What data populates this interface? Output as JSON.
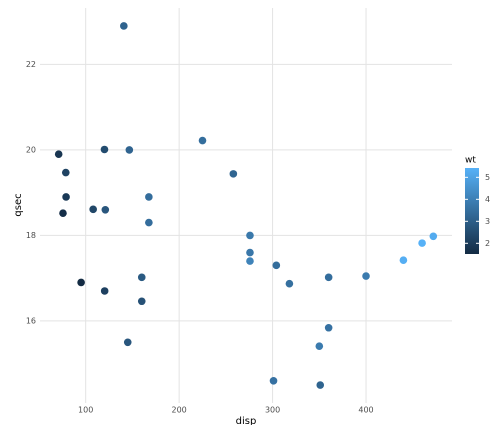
{
  "chart_data": {
    "type": "scatter",
    "x_label": "disp",
    "y_label": "qsec",
    "x": [
      160,
      160,
      108,
      258,
      360,
      225,
      360,
      146.7,
      140.8,
      167.6,
      167.6,
      275.8,
      275.8,
      275.8,
      472,
      460,
      440,
      78.7,
      75.7,
      71.1,
      120.1,
      318,
      304,
      350,
      400,
      79,
      120.3,
      95.1,
      351,
      145,
      301,
      121
    ],
    "y": [
      16.46,
      17.02,
      18.61,
      19.44,
      17.02,
      20.22,
      15.84,
      20.0,
      22.9,
      18.3,
      18.9,
      17.4,
      17.6,
      18.0,
      17.98,
      17.82,
      17.42,
      19.47,
      18.52,
      19.9,
      20.01,
      16.87,
      17.3,
      15.41,
      17.05,
      18.9,
      16.7,
      16.9,
      14.5,
      15.5,
      14.6,
      18.6
    ],
    "wt": [
      2.62,
      2.875,
      2.32,
      3.215,
      3.44,
      3.46,
      3.57,
      3.19,
      3.15,
      3.44,
      3.44,
      4.07,
      3.73,
      3.78,
      5.25,
      5.424,
      5.345,
      2.2,
      1.615,
      1.835,
      2.465,
      3.52,
      3.435,
      3.84,
      3.845,
      1.935,
      2.14,
      1.513,
      3.17,
      2.77,
      3.57,
      2.78
    ],
    "xlim": [
      51.1,
      492
    ],
    "ylim": [
      14.08,
      23.32
    ],
    "xticks": [
      100,
      200,
      300,
      400
    ],
    "yticks": [
      16,
      18,
      20,
      22
    ],
    "grid": true,
    "colorbar": {
      "title": "wt",
      "lim": [
        1.513,
        5.424
      ],
      "ticks": [
        2,
        3,
        4,
        5
      ],
      "low": "#132B43",
      "high": "#56B1F7"
    }
  }
}
